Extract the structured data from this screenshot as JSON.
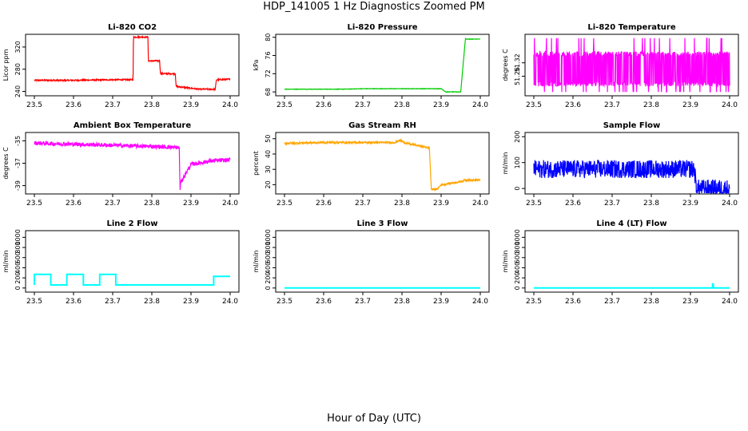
{
  "title": "HDP_141005  1 Hz Diagnostics Zoomed PM",
  "xlabel": "Hour of Day (UTC)",
  "chart_data": [
    {
      "type": "line",
      "title": "Li-820 CO2",
      "ylabel": "Licor ppm",
      "color": "#ff0000",
      "xlim": [
        23.5,
        24.0
      ],
      "xticks": [
        23.5,
        23.6,
        23.7,
        23.8,
        23.9,
        24.0
      ],
      "xtick_labels": [
        "23.5",
        "23.6",
        "23.7",
        "23.8",
        "23.9",
        "24.0"
      ],
      "ylim": [
        235,
        340
      ],
      "yticks": [
        240,
        280,
        320
      ],
      "ytick_labels": [
        "240",
        "280",
        "320"
      ],
      "series": [
        {
          "name": "CO2",
          "x": [
            23.5,
            23.6,
            23.7,
            23.752,
            23.753,
            23.79,
            23.791,
            23.82,
            23.822,
            23.86,
            23.862,
            23.92,
            23.962,
            23.965,
            24.0
          ],
          "y": [
            260,
            260,
            261,
            261,
            338,
            338,
            295,
            295,
            272,
            272,
            249,
            244,
            244,
            261,
            262
          ],
          "noise": 1.2
        }
      ]
    },
    {
      "type": "line",
      "title": "Li-820 Pressure",
      "ylabel": "kPa",
      "color": "#00cc00",
      "xlim": [
        23.5,
        24.0
      ],
      "xticks": [
        23.5,
        23.6,
        23.7,
        23.8,
        23.9,
        24.0
      ],
      "xtick_labels": [
        "23.5",
        "23.6",
        "23.7",
        "23.8",
        "23.9",
        "24.0"
      ],
      "ylim": [
        67.5,
        80.3
      ],
      "yticks": [
        68,
        72,
        76,
        80
      ],
      "ytick_labels": [
        "68",
        "72",
        "76",
        "80"
      ],
      "series": [
        {
          "name": "Pressure",
          "x": [
            23.5,
            23.65,
            23.7,
            23.9,
            23.912,
            23.915,
            23.95,
            23.962,
            24.0
          ],
          "y": [
            68.6,
            68.6,
            68.7,
            68.7,
            68.0,
            68.0,
            68.0,
            79.6,
            79.6
          ],
          "noise": 0.05
        }
      ]
    },
    {
      "type": "line",
      "title": "Li-820 Temperature",
      "ylabel": "degrees C",
      "color": "#ff00ff",
      "xlim": [
        23.5,
        24.0
      ],
      "xticks": [
        23.5,
        23.6,
        23.7,
        23.8,
        23.9,
        24.0
      ],
      "xtick_labels": [
        "23.5",
        "23.6",
        "23.7",
        "23.8",
        "23.9",
        "24.0"
      ],
      "ylim": [
        51.18,
        51.44
      ],
      "yticks": [
        51.26,
        51.32
      ],
      "ytick_labels": [
        "51.26",
        "51.32"
      ],
      "series": [
        {
          "name": "Temperature",
          "x": [
            23.5,
            24.0
          ],
          "y": [
            51.29,
            51.29
          ],
          "noise": 0.09,
          "band": [
            51.215,
            51.37
          ]
        }
      ]
    },
    {
      "type": "line",
      "title": "Ambient Box Temperature",
      "ylabel": "degrees C",
      "color": "#ff00ff",
      "xlim": [
        23.5,
        24.0
      ],
      "xticks": [
        23.5,
        23.6,
        23.7,
        23.8,
        23.9,
        24.0
      ],
      "xtick_labels": [
        "23.5",
        "23.6",
        "23.7",
        "23.8",
        "23.9",
        "24.0"
      ],
      "ylim": [
        -39.6,
        -34.4
      ],
      "yticks": [
        -39,
        -37,
        -35
      ],
      "ytick_labels": [
        "-39",
        "-37",
        "-35"
      ],
      "series": [
        {
          "name": "Ambient",
          "x": [
            23.5,
            23.6,
            23.7,
            23.8,
            23.87,
            23.872,
            23.874,
            23.9,
            23.95,
            24.0
          ],
          "y": [
            -35.2,
            -35.3,
            -35.4,
            -35.5,
            -35.6,
            -39.3,
            -38.7,
            -37.1,
            -36.8,
            -36.7
          ],
          "noise": 0.18
        }
      ]
    },
    {
      "type": "line",
      "title": "Gas Stream RH",
      "ylabel": "percent",
      "color": "#ffa500",
      "xlim": [
        23.5,
        24.0
      ],
      "xticks": [
        23.5,
        23.6,
        23.7,
        23.8,
        23.9,
        24.0
      ],
      "xtick_labels": [
        "23.5",
        "23.6",
        "23.7",
        "23.8",
        "23.9",
        "24.0"
      ],
      "ylim": [
        15,
        53
      ],
      "yticks": [
        20,
        30,
        40,
        50
      ],
      "ytick_labels": [
        "20",
        "30",
        "40",
        "50"
      ],
      "series": [
        {
          "name": "RH",
          "x": [
            23.5,
            23.6,
            23.7,
            23.78,
            23.795,
            23.81,
            23.85,
            23.87,
            23.875,
            23.89,
            23.9,
            23.95,
            23.96,
            24.0
          ],
          "y": [
            47,
            47.5,
            47.5,
            47.5,
            49,
            47,
            45,
            44,
            17,
            17,
            20,
            22,
            23,
            23
          ],
          "noise": 0.6
        }
      ]
    },
    {
      "type": "line",
      "title": "Sample Flow",
      "ylabel": "ml/min",
      "color": "#0000ff",
      "xlim": [
        23.5,
        24.0
      ],
      "xticks": [
        23.5,
        23.6,
        23.7,
        23.8,
        23.9,
        24.0
      ],
      "xtick_labels": [
        "23.5",
        "23.6",
        "23.7",
        "23.8",
        "23.9",
        "24.0"
      ],
      "ylim": [
        -15,
        210
      ],
      "yticks": [
        0,
        100,
        200
      ],
      "ytick_labels": [
        "0",
        "100",
        "200"
      ],
      "series": [
        {
          "name": "Sample Flow",
          "x": [
            23.5,
            23.91,
            23.915,
            24.0
          ],
          "y": [
            75,
            75,
            0,
            0
          ],
          "noise": 35
        }
      ]
    },
    {
      "type": "line",
      "title": "Line 2 Flow",
      "ylabel": "ml/min",
      "color": "#00ffff",
      "xlim": [
        23.5,
        24.0
      ],
      "xticks": [
        23.5,
        23.6,
        23.7,
        23.8,
        23.9,
        24.0
      ],
      "xtick_labels": [
        "23.5",
        "23.6",
        "23.7",
        "23.8",
        "23.9",
        "24.0"
      ],
      "ylim": [
        -50,
        1100
      ],
      "yticks": [
        0,
        200,
        400,
        600,
        800,
        1000
      ],
      "ytick_labels": [
        "0",
        "200",
        "400",
        "600",
        "800",
        "1000"
      ],
      "series": [
        {
          "name": "Line 2",
          "x": [
            23.5,
            23.5,
            23.542,
            23.542,
            23.583,
            23.583,
            23.625,
            23.625,
            23.667,
            23.667,
            23.708,
            23.708,
            23.958,
            23.958,
            24.0
          ],
          "y": [
            60,
            270,
            270,
            60,
            60,
            270,
            270,
            60,
            60,
            270,
            270,
            60,
            60,
            230,
            230
          ],
          "noise": 0
        }
      ]
    },
    {
      "type": "line",
      "title": "Line 3 Flow",
      "ylabel": "ml/min",
      "color": "#00ffff",
      "xlim": [
        23.5,
        24.0
      ],
      "xticks": [
        23.5,
        23.6,
        23.7,
        23.8,
        23.9,
        24.0
      ],
      "xtick_labels": [
        "23.5",
        "23.6",
        "23.7",
        "23.8",
        "23.9",
        "24.0"
      ],
      "ylim": [
        -50,
        1100
      ],
      "yticks": [
        0,
        200,
        400,
        600,
        800,
        1000
      ],
      "ytick_labels": [
        "0",
        "200",
        "400",
        "600",
        "800",
        "1000"
      ],
      "series": [
        {
          "name": "Line 3",
          "x": [
            23.5,
            24.0
          ],
          "y": [
            0,
            0
          ],
          "noise": 0
        }
      ]
    },
    {
      "type": "line",
      "title": "Line 4 (LT) Flow",
      "ylabel": "ml/min",
      "color": "#00ffff",
      "xlim": [
        23.5,
        24.0
      ],
      "xticks": [
        23.5,
        23.6,
        23.7,
        23.8,
        23.9,
        24.0
      ],
      "xtick_labels": [
        "23.5",
        "23.6",
        "23.7",
        "23.8",
        "23.9",
        "24.0"
      ],
      "ylim": [
        -50,
        1100
      ],
      "yticks": [
        0,
        200,
        400,
        600,
        800,
        1000
      ],
      "ytick_labels": [
        "0",
        "200",
        "400",
        "600",
        "800",
        "1000"
      ],
      "series": [
        {
          "name": "Line 4",
          "x": [
            23.5,
            23.956,
            23.957,
            23.958,
            23.959,
            24.0
          ],
          "y": [
            0,
            0,
            80,
            80,
            0,
            0
          ],
          "noise": 0
        }
      ]
    }
  ]
}
